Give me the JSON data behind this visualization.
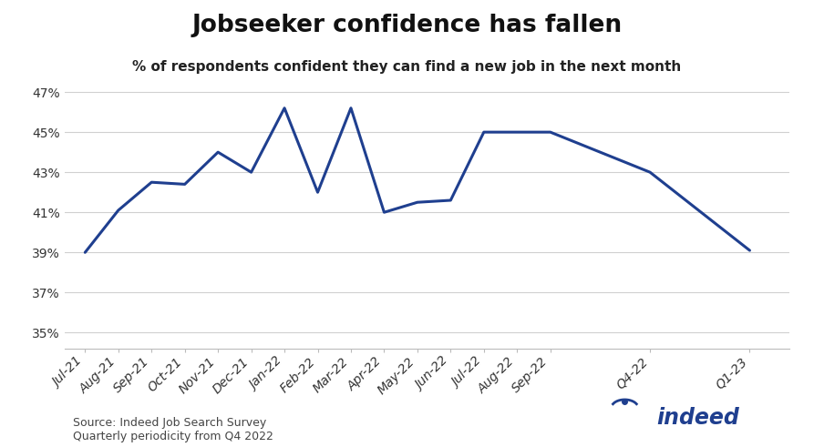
{
  "title": "Jobseeker confidence has fallen",
  "subtitle": "% of respondents confident they can find a new job in the next month",
  "source_line1": "Source: Indeed Job Search Survey",
  "source_line2": "Quarterly periodicity from Q4 2022",
  "x_labels": [
    "Jul-21",
    "Aug-21",
    "Sep-21",
    "Oct-21",
    "Nov-21",
    "Dec-21",
    "Jan-22",
    "Feb-22",
    "Mar-22",
    "Apr-22",
    "May-22",
    "Jun-22",
    "Jul-22",
    "Aug-22",
    "Sep-22",
    "Q4-22",
    "Q1-23"
  ],
  "x_positions": [
    0,
    1,
    2,
    3,
    4,
    5,
    6,
    7,
    8,
    9,
    10,
    11,
    12,
    13,
    14,
    17,
    20
  ],
  "y_values": [
    0.39,
    0.411,
    0.425,
    0.424,
    0.44,
    0.43,
    0.462,
    0.42,
    0.462,
    0.41,
    0.415,
    0.416,
    0.45,
    0.45,
    0.45,
    0.43,
    0.391
  ],
  "line_color": "#1f3f8f",
  "line_width": 2.2,
  "y_ticks": [
    0.35,
    0.37,
    0.39,
    0.41,
    0.43,
    0.45,
    0.47
  ],
  "ylim": [
    0.342,
    0.478
  ],
  "xlim_min": -0.6,
  "xlim_max": 21.2,
  "background_color": "#ffffff",
  "title_fontsize": 19,
  "subtitle_fontsize": 11,
  "tick_fontsize": 10,
  "source_fontsize": 9,
  "grid_color": "#d0d0d0",
  "spine_color": "#bbbbbb",
  "tick_label_color": "#333333"
}
